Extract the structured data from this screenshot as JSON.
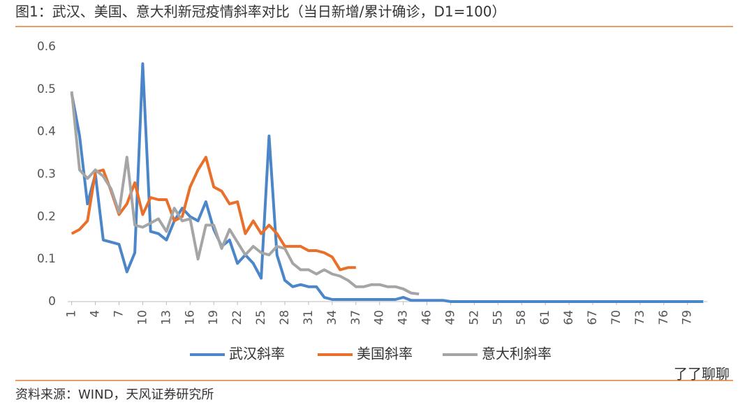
{
  "title": "图1：武汉、美国、意大利新冠疫情斜率对比（当日新增/累计确诊，D1=100）",
  "footer": "资料来源：WIND，天风证券研究所",
  "watermark": "了了聊聊",
  "chart_data": {
    "type": "line",
    "x": [
      1,
      2,
      3,
      4,
      5,
      6,
      7,
      8,
      9,
      10,
      11,
      12,
      13,
      14,
      15,
      16,
      17,
      18,
      19,
      20,
      21,
      22,
      23,
      24,
      25,
      26,
      27,
      28,
      29,
      30,
      31,
      32,
      33,
      34,
      35,
      36,
      37,
      38,
      39,
      40,
      41,
      42,
      43,
      44,
      45,
      46,
      47,
      48,
      49,
      50,
      51,
      52,
      53,
      54,
      55,
      56,
      57,
      58,
      59,
      60,
      61,
      62,
      63,
      64,
      65,
      66,
      67,
      68,
      69,
      70,
      71,
      72,
      73,
      74,
      75,
      76,
      77,
      78,
      79,
      80,
      81
    ],
    "xlim": [
      0.5,
      81.5
    ],
    "xticks": [
      1,
      4,
      7,
      10,
      13,
      16,
      19,
      22,
      25,
      28,
      31,
      34,
      37,
      40,
      43,
      46,
      49,
      52,
      55,
      58,
      61,
      64,
      67,
      70,
      73,
      76,
      79
    ],
    "ylim": [
      0,
      0.6
    ],
    "yticks": [
      {
        "value": 0,
        "label": "0"
      },
      0.1,
      0.2,
      0.3,
      0.4,
      0.5,
      0.6
    ],
    "legend": "bottom",
    "series": [
      {
        "name": "武汉斜率",
        "color": "#4a86c8",
        "values": [
          0.49,
          0.39,
          0.23,
          0.3,
          0.145,
          0.14,
          0.135,
          0.07,
          0.115,
          0.56,
          0.165,
          0.16,
          0.145,
          0.19,
          0.22,
          0.2,
          0.19,
          0.235,
          0.17,
          0.13,
          0.145,
          0.09,
          0.11,
          0.09,
          0.055,
          0.39,
          0.11,
          0.05,
          0.035,
          0.04,
          0.035,
          0.035,
          0.01,
          0.005,
          0.005,
          0.005,
          0.005,
          0.005,
          0.005,
          0.005,
          0.005,
          0.005,
          0.01,
          0.003,
          0.003,
          0.003,
          0.003,
          0.003,
          0,
          0,
          0,
          0,
          0,
          0,
          0,
          0,
          0,
          0,
          0,
          0,
          0,
          0,
          0,
          0,
          0,
          0,
          0,
          0,
          0,
          0,
          0,
          0,
          0,
          0,
          0,
          0,
          0,
          0,
          0,
          0,
          0
        ]
      },
      {
        "name": "美国斜率",
        "color": "#e8702a",
        "values": [
          0.16,
          0.17,
          0.19,
          0.305,
          0.31,
          0.26,
          0.205,
          0.23,
          0.28,
          0.205,
          0.245,
          0.24,
          0.24,
          0.19,
          0.2,
          0.27,
          0.31,
          0.34,
          0.27,
          0.26,
          0.23,
          0.235,
          0.16,
          0.19,
          0.16,
          0.18,
          0.16,
          0.13,
          0.13,
          0.13,
          0.12,
          0.12,
          0.115,
          0.105,
          0.075,
          0.08,
          0.08,
          null,
          null,
          null,
          null,
          null,
          null,
          null,
          null,
          null,
          null,
          null,
          null,
          null,
          null,
          null,
          null,
          null,
          null,
          null,
          null,
          null,
          null,
          null,
          null,
          null,
          null,
          null,
          null,
          null,
          null,
          null,
          null,
          null,
          null,
          null,
          null,
          null,
          null,
          null,
          null,
          null,
          null,
          null,
          null
        ]
      },
      {
        "name": "意大利斜率",
        "color": "#a5a5a5",
        "values": [
          0.495,
          0.31,
          0.29,
          0.31,
          0.295,
          0.265,
          0.21,
          0.34,
          0.18,
          0.175,
          0.185,
          0.195,
          0.165,
          0.22,
          0.19,
          0.195,
          0.1,
          0.18,
          0.18,
          0.125,
          0.17,
          0.14,
          0.11,
          0.13,
          0.115,
          0.11,
          0.13,
          0.125,
          0.09,
          0.075,
          0.075,
          0.065,
          0.075,
          0.065,
          0.06,
          0.05,
          0.035,
          0.035,
          0.04,
          0.04,
          0.035,
          0.035,
          0.03,
          0.02,
          0.018,
          null,
          null,
          null,
          null,
          null,
          null,
          null,
          null,
          null,
          null,
          null,
          null,
          null,
          null,
          null,
          null,
          null,
          null,
          null,
          null,
          null,
          null,
          null,
          null,
          null,
          null,
          null,
          null,
          null,
          null,
          null,
          null,
          null,
          null,
          null,
          null
        ]
      }
    ]
  }
}
